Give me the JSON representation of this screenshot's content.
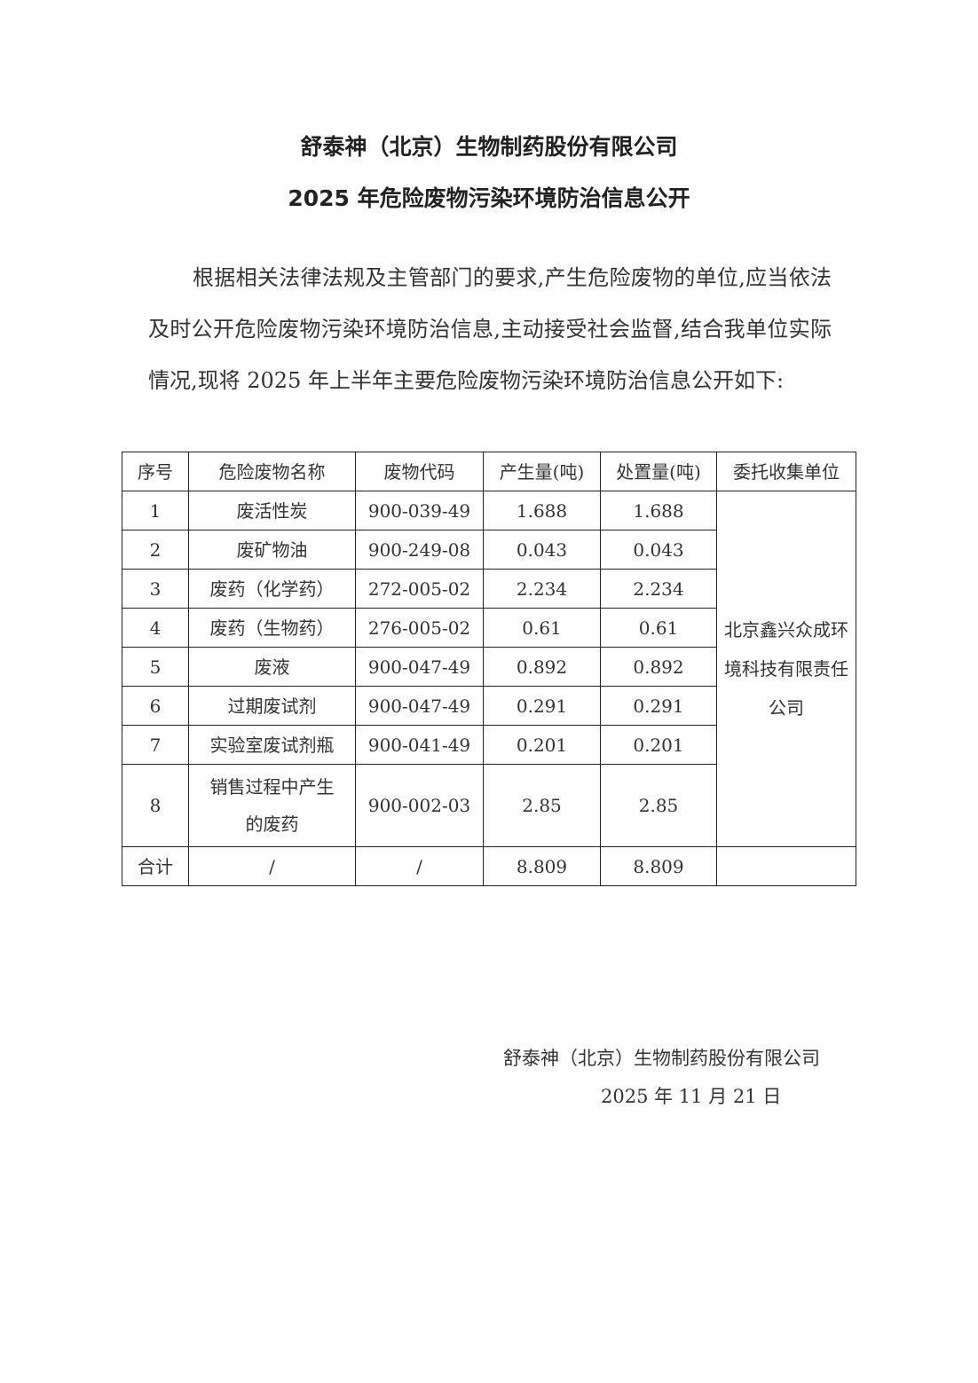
{
  "title_line1": "舒泰神（北京）生物制药股份有限公司",
  "title_line2": "2025 年危险废物污染环境防治信息公开",
  "paragraph": "根据相关法律法规及主管部门的要求,产生危险废物的单位,应当依法及时公开危险废物污染环境防治信息,主动接受社会监督,结合我单位实际情况,现将 2025 年上半年主要危险废物污染环境防治信息公开如下:",
  "table": {
    "headers": [
      "序号",
      "危险废物名称",
      "废物代码",
      "产生量(吨)",
      "处置量(吨)",
      "委托收集单位"
    ],
    "rows": [
      {
        "no": "1",
        "name": "废活性炭",
        "code": "900-039-49",
        "produced": "1.688",
        "disposed": "1.688"
      },
      {
        "no": "2",
        "name": "废矿物油",
        "code": "900-249-08",
        "produced": "0.043",
        "disposed": "0.043"
      },
      {
        "no": "3",
        "name": "废药（化学药）",
        "code": "272-005-02",
        "produced": "2.234",
        "disposed": "2.234"
      },
      {
        "no": "4",
        "name": "废药（生物药）",
        "code": "276-005-02",
        "produced": "0.61",
        "disposed": "0.61"
      },
      {
        "no": "5",
        "name": "废液",
        "code": "900-047-49",
        "produced": "0.892",
        "disposed": "0.892"
      },
      {
        "no": "6",
        "name": "过期废试剂",
        "code": "900-047-49",
        "produced": "0.291",
        "disposed": "0.291"
      },
      {
        "no": "7",
        "name": "实验室废试剂瓶",
        "code": "900-041-49",
        "produced": "0.201",
        "disposed": "0.201"
      },
      {
        "no": "8",
        "name": "销售过程中产生的废药",
        "code": "900-002-03",
        "produced": "2.85",
        "disposed": "2.85"
      }
    ],
    "collector": "北京鑫兴众成环境科技有限责任公司",
    "total": {
      "label": "合计",
      "name": "/",
      "code": "/",
      "produced": "8.809",
      "disposed": "8.809"
    }
  },
  "signature": {
    "company": "舒泰神（北京）生物制药股份有限公司",
    "date": "2025 年 11 月 21 日"
  }
}
